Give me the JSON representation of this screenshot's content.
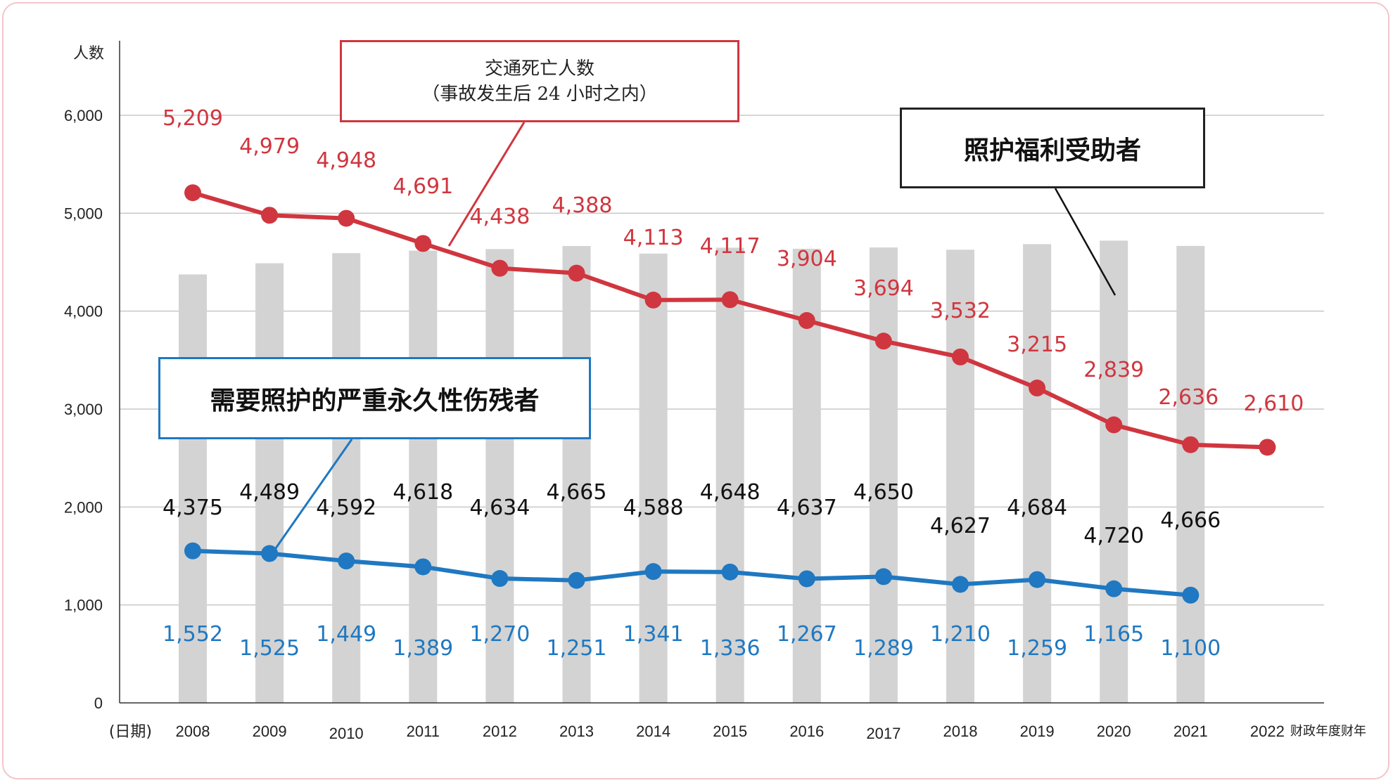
{
  "chart_data": {
    "type": "bar+line",
    "ylabel": "人数",
    "ylim": [
      0,
      6000
    ],
    "yticks": [
      "0",
      "1,000",
      "2,000",
      "3,000",
      "4,000",
      "5,000",
      "6,000"
    ],
    "y_tick_values": [
      0,
      1000,
      2000,
      3000,
      4000,
      5000,
      6000
    ],
    "x_prefix": "(日期)",
    "x_suffix": "财政年度财年",
    "categories": [
      "2008",
      "2009",
      "2010",
      "2011",
      "2012",
      "2013",
      "2014",
      "2015",
      "2016",
      "2017",
      "2018",
      "2019",
      "2020",
      "2021",
      "2022"
    ],
    "grid": true,
    "series": [
      {
        "name": "照护福利受助者",
        "kind": "bar",
        "color": "#d3d3d3",
        "label_color": "#111111",
        "values": [
          4375,
          4489,
          4592,
          4618,
          4634,
          4665,
          4588,
          4648,
          4637,
          4650,
          4627,
          4684,
          4720,
          4666,
          null
        ],
        "labels": [
          "4,375",
          "4,489",
          "4,592",
          "4,618",
          "4,634",
          "4,665",
          "4,588",
          "4,648",
          "4,637",
          "4,650",
          "4,627",
          "4,684",
          "4,720",
          "4,666",
          ""
        ]
      },
      {
        "name": "交通死亡人数（事故发生后 24 小时之内）",
        "kind": "line",
        "color": "#d0363f",
        "values": [
          5209,
          4979,
          4948,
          4691,
          4438,
          4388,
          4113,
          4117,
          3904,
          3694,
          3532,
          3215,
          2839,
          2636,
          2610
        ],
        "labels": [
          "5,209",
          "4,979",
          "4,948",
          "4,691",
          "4,438",
          "4,388",
          "4,113",
          "4,117",
          "3,904",
          "3,694",
          "3,532",
          "3,215",
          "2,839",
          "2,636",
          "2,610"
        ]
      },
      {
        "name": "需要照护的严重永久性伤残者",
        "kind": "line",
        "color": "#1f78c1",
        "values": [
          1552,
          1525,
          1449,
          1389,
          1270,
          1251,
          1341,
          1336,
          1267,
          1289,
          1210,
          1259,
          1165,
          1100,
          null
        ],
        "labels": [
          "1,552",
          "1,525",
          "1,449",
          "1,389",
          "1,270",
          "1,251",
          "1,341",
          "1,336",
          "1,267",
          "1,289",
          "1,210",
          "1,259",
          "1,165",
          "1,100",
          ""
        ]
      }
    ]
  },
  "callouts": {
    "deaths_line1": "交通死亡人数",
    "deaths_line2": "（事故发生后 24 小时之内）",
    "care": "照护福利受助者",
    "disabled": "需要照护的严重永久性伤残者"
  }
}
